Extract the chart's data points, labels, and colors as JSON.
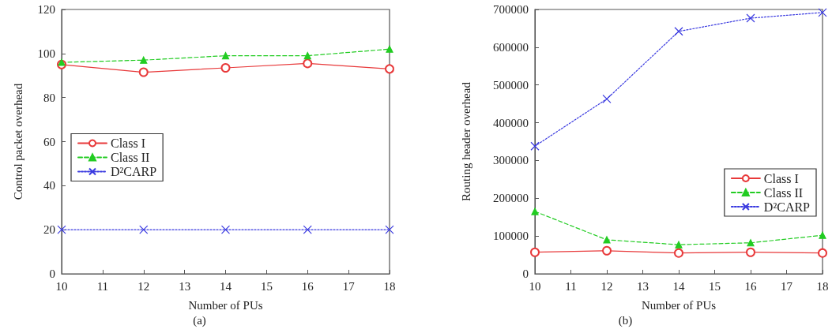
{
  "chart_data": [
    {
      "type": "line",
      "xlabel": "Number of PUs",
      "ylabel": "Control packet overhead",
      "annotations": [
        "(a)"
      ],
      "x": [
        10,
        12,
        14,
        16,
        18
      ],
      "xlim": [
        10,
        18
      ],
      "xticks": [
        10,
        11,
        12,
        13,
        14,
        15,
        16,
        17,
        18
      ],
      "ylim": [
        0,
        120
      ],
      "yticks": [
        0,
        20,
        40,
        60,
        80,
        100,
        120
      ],
      "grid": false,
      "legend": "left",
      "series": [
        {
          "name": "Class I",
          "color": "#e8393a",
          "marker": "circle",
          "line_style": "solid",
          "values": [
            95,
            91.5,
            93.5,
            95.5,
            93
          ]
        },
        {
          "name": "Class II",
          "color": "#22cc22",
          "marker": "triangle",
          "line_style": "dashed",
          "values": [
            96,
            97,
            99,
            99,
            102
          ]
        },
        {
          "name": "D²CARP",
          "color": "#3a3ae0",
          "marker": "cross",
          "line_style": "dotted",
          "values": [
            20,
            20,
            20,
            20,
            20
          ]
        }
      ]
    },
    {
      "type": "line",
      "xlabel": "Number of PUs",
      "ylabel": "Routing header overhead",
      "annotations": [
        "(b)"
      ],
      "x": [
        10,
        12,
        14,
        16,
        18
      ],
      "xlim": [
        10,
        18
      ],
      "xticks": [
        10,
        11,
        12,
        13,
        14,
        15,
        16,
        17,
        18
      ],
      "ylim": [
        0,
        700000
      ],
      "yticks": [
        0,
        100000,
        200000,
        300000,
        400000,
        500000,
        600000,
        700000
      ],
      "grid": false,
      "legend": "bottom right",
      "series": [
        {
          "name": "Class I",
          "color": "#e8393a",
          "marker": "circle",
          "line_style": "solid",
          "values": [
            57000,
            61000,
            55000,
            57000,
            55000
          ]
        },
        {
          "name": "Class II",
          "color": "#22cc22",
          "marker": "triangle",
          "line_style": "dashed",
          "values": [
            165000,
            90000,
            77000,
            82000,
            102000
          ]
        },
        {
          "name": "D²CARP",
          "color": "#3a3ae0",
          "marker": "cross",
          "line_style": "dotted",
          "values": [
            338000,
            463000,
            642000,
            677000,
            692000
          ]
        }
      ]
    }
  ]
}
